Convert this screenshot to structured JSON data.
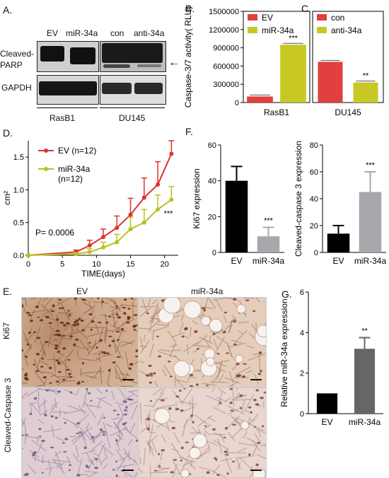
{
  "panels": {
    "A": "A.",
    "B": "B.",
    "C": "C.",
    "D": "D.",
    "E": "E.",
    "F": "F.",
    "G": "G."
  },
  "panelA": {
    "lanes_left": [
      "EV",
      "miR-34a"
    ],
    "lanes_right": [
      "con",
      "anti-34a"
    ],
    "row1_label": "Cleaved-\nPARP",
    "row1_label_a": "Cleaved-",
    "row1_label_b": "PARP",
    "row2_label": "GAPDH",
    "cell_left": "RasB1",
    "cell_right": "DU145",
    "arrow": "←"
  },
  "chart_data": [
    {
      "id": "B",
      "type": "bar",
      "categories": [
        "EV",
        "miR-34a"
      ],
      "values": [
        100000,
        950000
      ],
      "colors": [
        "#e04040",
        "#c8c825"
      ],
      "ylabel": "Caspase-3/7 activity( RLU)",
      "ylim": [
        0,
        1500000
      ],
      "yticks": [
        "0",
        "300000",
        "600000",
        "900000",
        "1200000",
        "1500000"
      ],
      "xlabel": "RasB1",
      "legend": [
        "EV",
        "miR-34a"
      ],
      "significance": [
        "",
        "***"
      ]
    },
    {
      "id": "C",
      "type": "bar",
      "categories": [
        "con",
        "anti-34a"
      ],
      "values": [
        670000,
        330000
      ],
      "colors": [
        "#e04040",
        "#c8c825"
      ],
      "ylim": [
        0,
        1500000
      ],
      "xlabel": "DU145",
      "legend": [
        "con",
        "anti-34a"
      ],
      "significance": [
        "",
        "**"
      ]
    },
    {
      "id": "D",
      "type": "line",
      "xlabel": "TIME(days)",
      "ylabel": "cm²",
      "xlim": [
        0,
        22
      ],
      "ylim": [
        0,
        1.75
      ],
      "xticks": [
        "0",
        "5",
        "10",
        "15",
        "20"
      ],
      "yticks": [
        "0.0",
        "0.5",
        "1.0",
        "1.5"
      ],
      "annotation": "P= 0.0006",
      "significance": "***",
      "series": [
        {
          "name": "EV (n=12)",
          "color": "#e03030",
          "x": [
            0,
            7,
            9,
            11,
            13,
            15,
            17,
            19,
            21
          ],
          "y": [
            0,
            0.05,
            0.15,
            0.28,
            0.42,
            0.62,
            0.88,
            1.08,
            1.55
          ],
          "err": [
            0,
            0.03,
            0.08,
            0.12,
            0.18,
            0.25,
            0.3,
            0.35,
            0.2
          ]
        },
        {
          "name": "miR-34a\n(n=12)",
          "color": "#b8c21c",
          "x": [
            0,
            7,
            9,
            11,
            13,
            15,
            17,
            19,
            21
          ],
          "y": [
            0,
            0.02,
            0.05,
            0.12,
            0.2,
            0.4,
            0.5,
            0.7,
            0.85
          ],
          "err": [
            0,
            0.02,
            0.05,
            0.08,
            0.12,
            0.18,
            0.2,
            0.22,
            0.2
          ]
        }
      ]
    },
    {
      "id": "F1",
      "type": "bar",
      "categories": [
        "EV",
        "miR-34a"
      ],
      "values": [
        40,
        9
      ],
      "err": [
        8,
        5
      ],
      "colors": [
        "#000000",
        "#a8a8ac"
      ],
      "ylabel": "Ki67 expression",
      "ylim": [
        0,
        60
      ],
      "yticks": [
        "0",
        "20",
        "40",
        "60"
      ],
      "significance": [
        "",
        "***"
      ]
    },
    {
      "id": "F2",
      "type": "bar",
      "categories": [
        "EV",
        "miR-34a"
      ],
      "values": [
        14,
        45
      ],
      "err": [
        6,
        15
      ],
      "colors": [
        "#000000",
        "#a8a8ac"
      ],
      "ylabel": "Cleaved-caspase 3 expression",
      "ylim": [
        0,
        80
      ],
      "yticks": [
        "0",
        "20",
        "40",
        "60",
        "80"
      ],
      "significance": [
        "",
        "***"
      ]
    },
    {
      "id": "G",
      "type": "bar",
      "categories": [
        "EV",
        "miR-34a"
      ],
      "values": [
        1.0,
        3.2
      ],
      "err": [
        0,
        0.55
      ],
      "colors": [
        "#000000",
        "#666666"
      ],
      "ylabel": "Relative miR-34a expression",
      "ylim": [
        0,
        6
      ],
      "yticks": [
        "0",
        "2",
        "4",
        "6"
      ],
      "significance": [
        "",
        "**"
      ]
    }
  ],
  "panelE": {
    "col_left": "EV",
    "col_right": "miR-34a",
    "row1": "Ki67",
    "row2": "Cleaved-Caspase 3"
  }
}
